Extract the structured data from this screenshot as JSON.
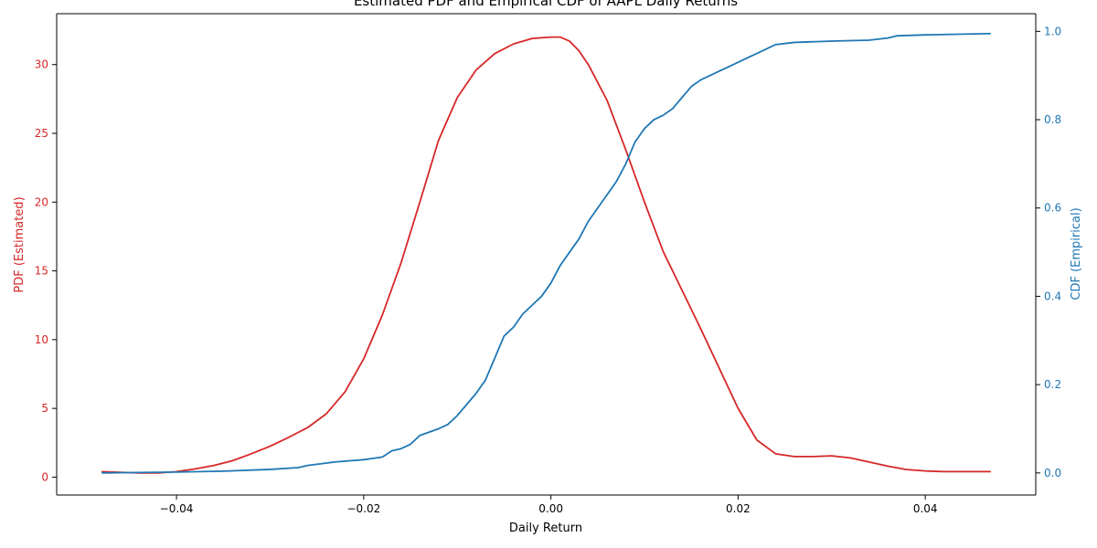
{
  "chart_data": {
    "type": "line",
    "title": "Estimated PDF and Empirical CDF of AAPL Daily Returns",
    "xlabel": "Daily Return",
    "ylabel_left": "PDF (Estimated)",
    "ylabel_right": "CDF (Empirical)",
    "xlim": [
      -0.0528,
      0.0518
    ],
    "ylim_left": [
      -1.3,
      33.7
    ],
    "ylim_right": [
      -0.05,
      1.04
    ],
    "x_ticks": [
      -0.04,
      -0.02,
      0.0,
      0.02,
      0.04
    ],
    "x_tick_labels": [
      "−0.04",
      "−0.02",
      "0.00",
      "0.02",
      "0.04"
    ],
    "y_left_ticks": [
      0,
      5,
      10,
      15,
      20,
      25,
      30
    ],
    "y_left_tick_labels": [
      "0",
      "5",
      "10",
      "15",
      "20",
      "25",
      "30"
    ],
    "y_right_ticks": [
      0.0,
      0.2,
      0.4,
      0.6,
      0.8,
      1.0
    ],
    "y_right_tick_labels": [
      "0.0",
      "0.2",
      "0.4",
      "0.6",
      "0.8",
      "1.0"
    ],
    "grid": false,
    "colors": {
      "pdf": "#d62728",
      "cdf": "#1f77b4",
      "axis": "#000000"
    },
    "series": [
      {
        "id": "pdf",
        "axis": "left",
        "x": [
          -0.048,
          -0.046,
          -0.044,
          -0.042,
          -0.04,
          -0.038,
          -0.036,
          -0.034,
          -0.032,
          -0.03,
          -0.028,
          -0.026,
          -0.024,
          -0.022,
          -0.02,
          -0.018,
          -0.016,
          -0.014,
          -0.012,
          -0.01,
          -0.008,
          -0.006,
          -0.004,
          -0.002,
          0.0,
          0.001,
          0.002,
          0.003,
          0.004,
          0.006,
          0.008,
          0.01,
          0.012,
          0.014,
          0.016,
          0.018,
          0.02,
          0.022,
          0.024,
          0.026,
          0.028,
          0.03,
          0.032,
          0.034,
          0.036,
          0.038,
          0.04,
          0.042,
          0.044,
          0.047
        ],
        "y": [
          0.4,
          0.35,
          0.3,
          0.3,
          0.4,
          0.6,
          0.85,
          1.2,
          1.7,
          2.25,
          2.9,
          3.6,
          4.6,
          6.2,
          8.6,
          11.8,
          15.6,
          20.0,
          24.5,
          27.6,
          29.6,
          30.8,
          31.5,
          31.9,
          32.0,
          32.0,
          31.7,
          31.0,
          30.0,
          27.4,
          23.8,
          20.0,
          16.4,
          13.6,
          10.8,
          7.9,
          5.0,
          2.7,
          1.7,
          1.5,
          1.5,
          1.55,
          1.4,
          1.1,
          0.8,
          0.55,
          0.45,
          0.4,
          0.4,
          0.4
        ]
      },
      {
        "id": "cdf",
        "axis": "right",
        "x": [
          -0.048,
          -0.04,
          -0.035,
          -0.03,
          -0.027,
          -0.026,
          -0.023,
          -0.02,
          -0.019,
          -0.018,
          -0.017,
          -0.016,
          -0.015,
          -0.014,
          -0.012,
          -0.011,
          -0.01,
          -0.009,
          -0.008,
          -0.007,
          -0.006,
          -0.005,
          -0.004,
          -0.003,
          -0.002,
          -0.001,
          0.0,
          0.001,
          0.002,
          0.003,
          0.004,
          0.005,
          0.006,
          0.007,
          0.008,
          0.009,
          0.01,
          0.011,
          0.012,
          0.013,
          0.014,
          0.015,
          0.016,
          0.017,
          0.018,
          0.019,
          0.02,
          0.021,
          0.022,
          0.023,
          0.024,
          0.026,
          0.03,
          0.034,
          0.036,
          0.037,
          0.04,
          0.047
        ],
        "y": [
          0.0,
          0.002,
          0.004,
          0.008,
          0.012,
          0.017,
          0.025,
          0.03,
          0.033,
          0.036,
          0.05,
          0.055,
          0.065,
          0.085,
          0.1,
          0.11,
          0.13,
          0.155,
          0.18,
          0.21,
          0.26,
          0.31,
          0.33,
          0.36,
          0.38,
          0.4,
          0.43,
          0.47,
          0.5,
          0.53,
          0.57,
          0.6,
          0.63,
          0.66,
          0.7,
          0.75,
          0.78,
          0.8,
          0.81,
          0.825,
          0.85,
          0.875,
          0.89,
          0.9,
          0.91,
          0.92,
          0.93,
          0.94,
          0.95,
          0.96,
          0.97,
          0.975,
          0.978,
          0.98,
          0.985,
          0.99,
          0.992,
          0.995
        ]
      }
    ]
  }
}
